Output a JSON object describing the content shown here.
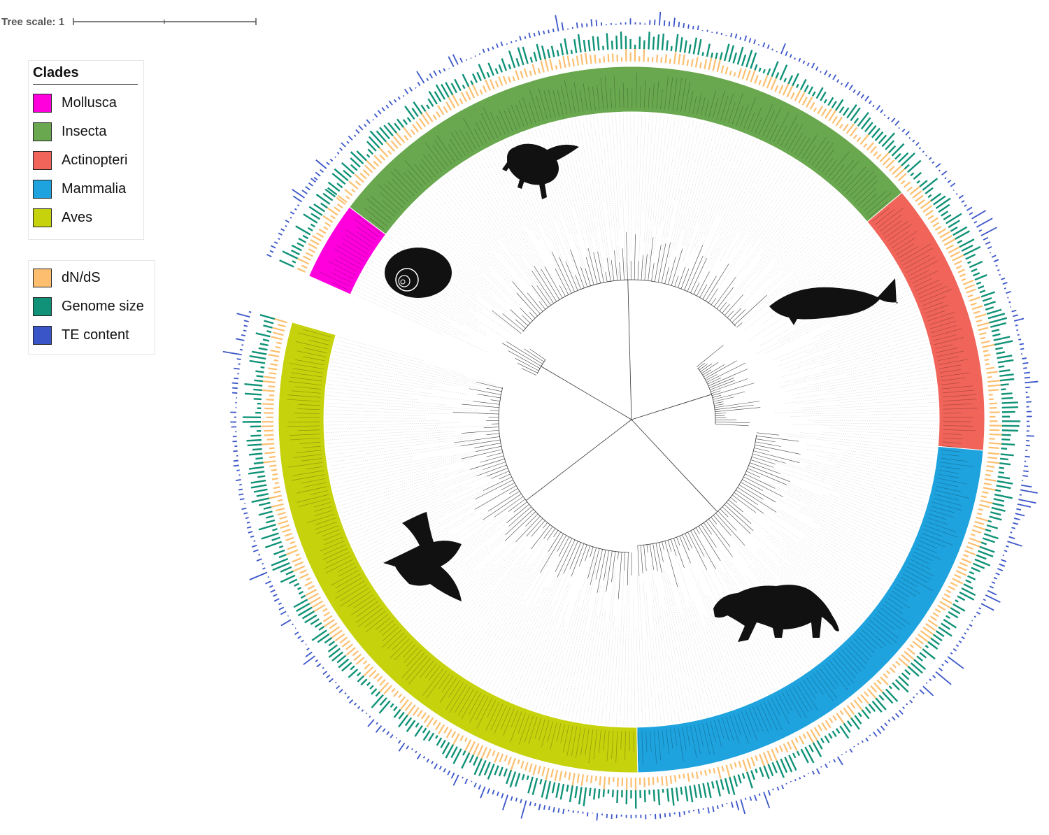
{
  "scale": {
    "label": "Tree scale: 1"
  },
  "clades_legend": {
    "title": "Clades",
    "items": [
      {
        "label": "Mollusca",
        "color": "#ff00dd"
      },
      {
        "label": "Insecta",
        "color": "#6aa84f"
      },
      {
        "label": "Actinopteri",
        "color": "#f0645a"
      },
      {
        "label": "Mammalia",
        "color": "#1ea3de"
      },
      {
        "label": "Aves",
        "color": "#c6d20c"
      }
    ]
  },
  "tracks_legend": {
    "items": [
      {
        "label": "dN/dS",
        "color": "#fdbf6f"
      },
      {
        "label": "Genome size",
        "color": "#0f9277"
      },
      {
        "label": "TE content",
        "color": "#3a55c8"
      }
    ]
  },
  "clade_ranges_deg": [
    {
      "clade": "Mollusca",
      "start": -156,
      "end": -143
    },
    {
      "clade": "Insecta",
      "start": -143,
      "end": -40
    },
    {
      "clade": "Actinopteri",
      "start": -40,
      "end": 5
    },
    {
      "clade": "Mammalia",
      "start": 5,
      "end": 89
    },
    {
      "clade": "Aves",
      "start": 89,
      "end": 196
    }
  ],
  "silhouettes": [
    {
      "clade": "Insecta",
      "icon": "bee-icon"
    },
    {
      "clade": "Mollusca",
      "icon": "snail-shell-icon"
    },
    {
      "clade": "Actinopteri",
      "icon": "fish-icon"
    },
    {
      "clade": "Aves",
      "icon": "bird-icon"
    },
    {
      "clade": "Mammalia",
      "icon": "puma-icon"
    }
  ]
}
